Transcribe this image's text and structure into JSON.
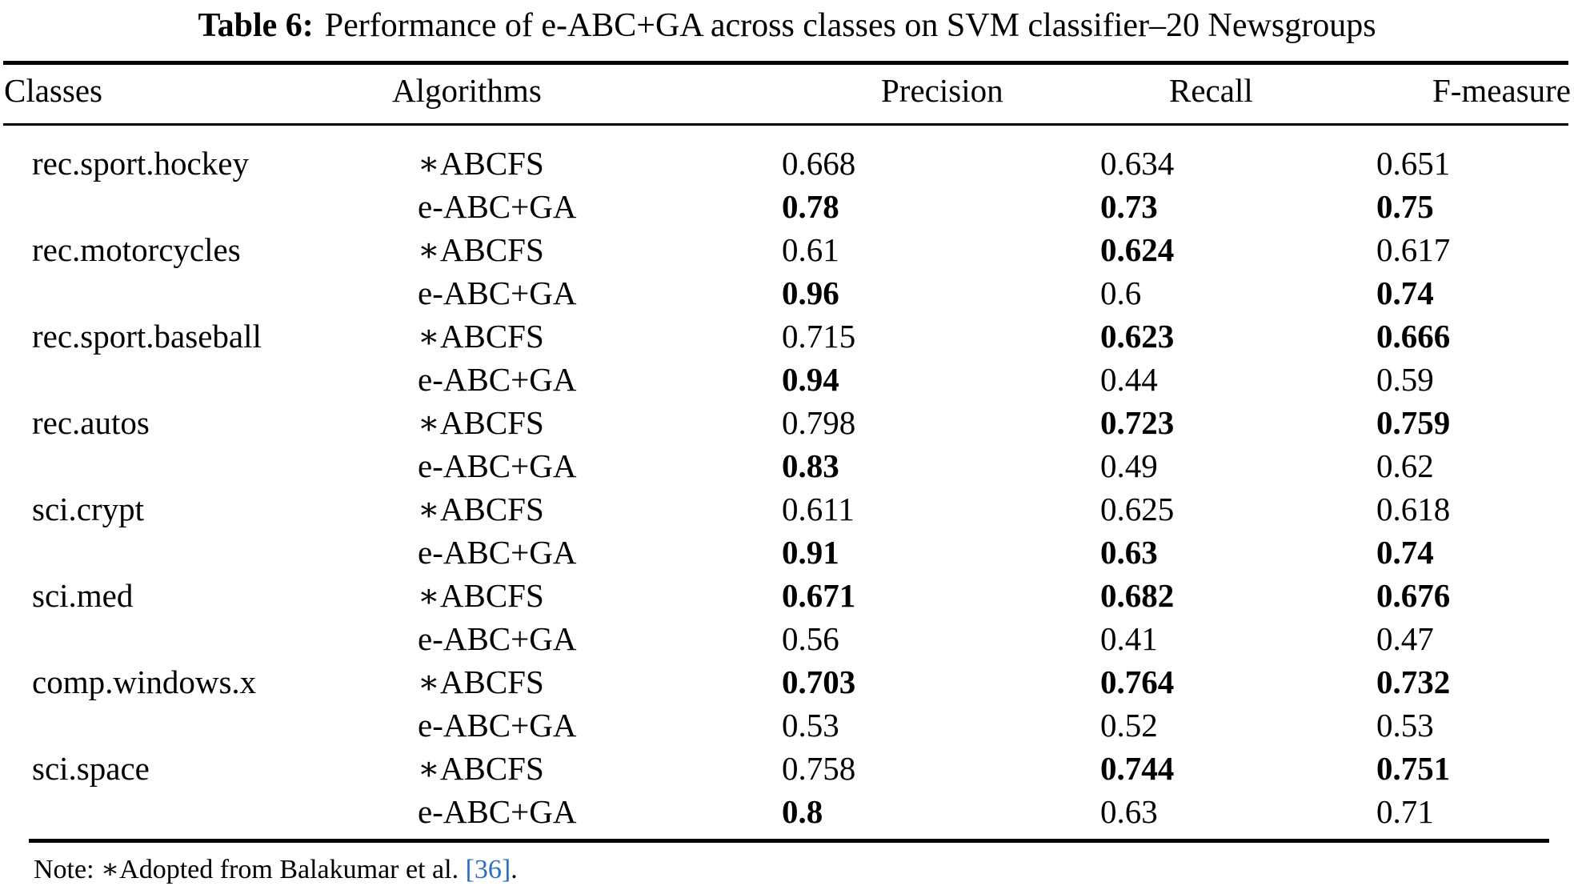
{
  "caption": {
    "label": "Table 6:",
    "text": "Performance of e-ABC+GA across classes on SVM classifier–20 Newsgroups"
  },
  "table": {
    "headers": [
      "Classes",
      "Algorithms",
      "Precision",
      "Recall",
      "F-measure"
    ],
    "rows": [
      {
        "class_name": "rec.sport.hockey",
        "algorithm": "∗ABCFS",
        "values": [
          {
            "text": "0.668",
            "bold": false
          },
          {
            "text": "0.634",
            "bold": false
          },
          {
            "text": "0.651",
            "bold": false
          }
        ]
      },
      {
        "class_name": "",
        "algorithm": "e-ABC+GA",
        "values": [
          {
            "text": "0.78",
            "bold": true
          },
          {
            "text": "0.73",
            "bold": true
          },
          {
            "text": "0.75",
            "bold": true
          }
        ]
      },
      {
        "class_name": "rec.motorcycles",
        "algorithm": "∗ABCFS",
        "values": [
          {
            "text": "0.61",
            "bold": false
          },
          {
            "text": "0.624",
            "bold": true
          },
          {
            "text": "0.617",
            "bold": false
          }
        ]
      },
      {
        "class_name": "",
        "algorithm": "e-ABC+GA",
        "values": [
          {
            "text": "0.96",
            "bold": true
          },
          {
            "text": "0.6",
            "bold": false
          },
          {
            "text": "0.74",
            "bold": true
          }
        ]
      },
      {
        "class_name": "rec.sport.baseball",
        "algorithm": "∗ABCFS",
        "values": [
          {
            "text": "0.715",
            "bold": false
          },
          {
            "text": "0.623",
            "bold": true
          },
          {
            "text": "0.666",
            "bold": true
          }
        ]
      },
      {
        "class_name": "",
        "algorithm": "e-ABC+GA",
        "values": [
          {
            "text": "0.94",
            "bold": true
          },
          {
            "text": "0.44",
            "bold": false
          },
          {
            "text": "0.59",
            "bold": false
          }
        ]
      },
      {
        "class_name": "rec.autos",
        "algorithm": "∗ABCFS",
        "values": [
          {
            "text": "0.798",
            "bold": false
          },
          {
            "text": "0.723",
            "bold": true
          },
          {
            "text": "0.759",
            "bold": true
          }
        ]
      },
      {
        "class_name": "",
        "algorithm": "e-ABC+GA",
        "values": [
          {
            "text": "0.83",
            "bold": true
          },
          {
            "text": "0.49",
            "bold": false
          },
          {
            "text": "0.62",
            "bold": false
          }
        ]
      },
      {
        "class_name": "sci.crypt",
        "algorithm": "∗ABCFS",
        "values": [
          {
            "text": "0.611",
            "bold": false
          },
          {
            "text": "0.625",
            "bold": false
          },
          {
            "text": "0.618",
            "bold": false
          }
        ]
      },
      {
        "class_name": "",
        "algorithm": "e-ABC+GA",
        "values": [
          {
            "text": "0.91",
            "bold": true
          },
          {
            "text": "0.63",
            "bold": true
          },
          {
            "text": "0.74",
            "bold": true
          }
        ]
      },
      {
        "class_name": "sci.med",
        "algorithm": "∗ABCFS",
        "values": [
          {
            "text": "0.671",
            "bold": true
          },
          {
            "text": "0.682",
            "bold": true
          },
          {
            "text": "0.676",
            "bold": true
          }
        ]
      },
      {
        "class_name": "",
        "algorithm": "e-ABC+GA",
        "values": [
          {
            "text": "0.56",
            "bold": false
          },
          {
            "text": "0.41",
            "bold": false
          },
          {
            "text": "0.47",
            "bold": false
          }
        ]
      },
      {
        "class_name": "comp.windows.x",
        "algorithm": "∗ABCFS",
        "values": [
          {
            "text": "0.703",
            "bold": true
          },
          {
            "text": "0.764",
            "bold": true
          },
          {
            "text": "0.732",
            "bold": true
          }
        ]
      },
      {
        "class_name": "",
        "algorithm": "e-ABC+GA",
        "values": [
          {
            "text": "0.53",
            "bold": false
          },
          {
            "text": "0.52",
            "bold": false
          },
          {
            "text": "0.53",
            "bold": false
          }
        ]
      },
      {
        "class_name": "sci.space",
        "algorithm": "∗ABCFS",
        "values": [
          {
            "text": "0.758",
            "bold": false
          },
          {
            "text": "0.744",
            "bold": true
          },
          {
            "text": "0.751",
            "bold": true
          }
        ]
      },
      {
        "class_name": "",
        "algorithm": "e-ABC+GA",
        "values": [
          {
            "text": "0.8",
            "bold": true
          },
          {
            "text": "0.63",
            "bold": false
          },
          {
            "text": "0.71",
            "bold": false
          }
        ]
      }
    ]
  },
  "note": {
    "prefix": "Note: ∗Adopted from Balakumar et al. ",
    "ref": "[36]",
    "suffix": "."
  },
  "colors": {
    "text": "#000000",
    "background": "#ffffff",
    "citation_link": "#2a6fc0"
  }
}
